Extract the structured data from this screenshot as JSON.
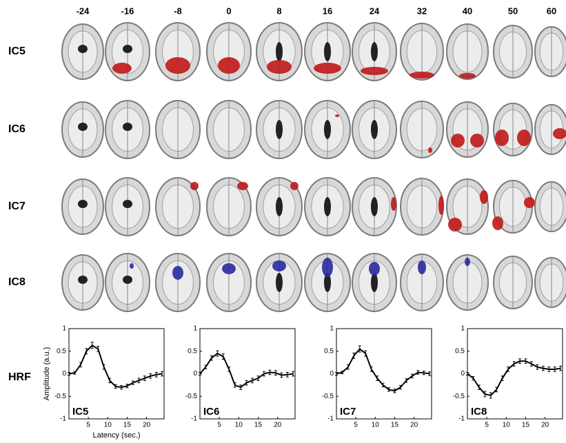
{
  "column_labels": [
    "-24",
    "-16",
    "-8",
    "0",
    "8",
    "16",
    "24",
    "32",
    "40",
    "50",
    "60"
  ],
  "row_labels": [
    "IC5",
    "IC6",
    "IC7",
    "IC8"
  ],
  "hrf_label": "HRF",
  "chart_data": [
    {
      "type": "line",
      "annotation": "IC5",
      "ylabel": "Amplitude (a.u.)",
      "xlabel": "Latency (sec.)",
      "color": "#000000",
      "x": [
        0,
        1.5,
        3,
        4.5,
        6,
        7.5,
        9,
        10.5,
        12,
        13.5,
        15,
        16.5,
        18,
        19.5,
        21,
        22.5,
        24
      ],
      "values": [
        0,
        0.02,
        0.2,
        0.5,
        0.63,
        0.55,
        0.15,
        -0.15,
        -0.28,
        -0.3,
        -0.27,
        -0.2,
        -0.15,
        -0.1,
        -0.05,
        -0.02,
        0
      ],
      "errors": [
        0.03,
        0.03,
        0.05,
        0.06,
        0.07,
        0.06,
        0.05,
        0.05,
        0.04,
        0.04,
        0.04,
        0.04,
        0.05,
        0.05,
        0.05,
        0.05,
        0.05
      ],
      "xlim": [
        0,
        24.5
      ],
      "xticks": [
        5,
        10,
        15,
        20
      ],
      "ylim": [
        -1,
        1
      ],
      "yticks": [
        -1,
        -0.5,
        0,
        0.5,
        1
      ]
    },
    {
      "type": "line",
      "annotation": "IC6",
      "color": "#000000",
      "x": [
        0,
        1.5,
        3,
        4.5,
        6,
        7.5,
        9,
        10.5,
        12,
        13.5,
        15,
        16.5,
        18,
        19.5,
        21,
        22.5,
        24
      ],
      "values": [
        0,
        0.15,
        0.35,
        0.45,
        0.38,
        0.1,
        -0.25,
        -0.3,
        -0.2,
        -0.15,
        -0.1,
        0,
        0.03,
        0.02,
        -0.03,
        -0.02,
        0
      ],
      "errors": [
        0.03,
        0.04,
        0.05,
        0.06,
        0.06,
        0.05,
        0.05,
        0.05,
        0.05,
        0.05,
        0.05,
        0.05,
        0.05,
        0.05,
        0.05,
        0.05,
        0.05
      ],
      "xlim": [
        0,
        24.5
      ],
      "xticks": [
        5,
        10,
        15,
        20
      ],
      "ylim": [
        -1,
        1
      ],
      "yticks": [
        -1,
        -0.5,
        0,
        0.5,
        1
      ]
    },
    {
      "type": "line",
      "annotation": "IC7",
      "color": "#000000",
      "x": [
        0,
        1.5,
        3,
        4.5,
        6,
        7.5,
        9,
        10.5,
        12,
        13.5,
        15,
        16.5,
        18,
        19.5,
        21,
        22.5,
        24
      ],
      "values": [
        0,
        0.03,
        0.15,
        0.4,
        0.55,
        0.45,
        0.1,
        -0.1,
        -0.25,
        -0.35,
        -0.38,
        -0.3,
        -0.15,
        -0.05,
        0.03,
        0.02,
        0
      ],
      "errors": [
        0.03,
        0.03,
        0.05,
        0.06,
        0.07,
        0.06,
        0.05,
        0.05,
        0.04,
        0.04,
        0.04,
        0.04,
        0.04,
        0.04,
        0.04,
        0.04,
        0.04
      ],
      "xlim": [
        0,
        24.5
      ],
      "xticks": [
        5,
        10,
        15,
        20
      ],
      "ylim": [
        -1,
        1
      ],
      "yticks": [
        -1,
        -0.5,
        0,
        0.5,
        1
      ]
    },
    {
      "type": "line",
      "annotation": "IC8",
      "color": "#000000",
      "x": [
        0,
        1.5,
        3,
        4.5,
        6,
        7.5,
        9,
        10.5,
        12,
        13.5,
        15,
        16.5,
        18,
        19.5,
        21,
        22.5,
        24
      ],
      "values": [
        0,
        -0.1,
        -0.3,
        -0.45,
        -0.48,
        -0.35,
        -0.1,
        0.1,
        0.22,
        0.28,
        0.28,
        0.22,
        0.15,
        0.12,
        0.1,
        0.1,
        0.12
      ],
      "errors": [
        0.03,
        0.04,
        0.05,
        0.06,
        0.06,
        0.05,
        0.05,
        0.05,
        0.05,
        0.05,
        0.05,
        0.05,
        0.05,
        0.05,
        0.05,
        0.05,
        0.05
      ],
      "xlim": [
        0,
        24.5
      ],
      "xticks": [
        5,
        10,
        15,
        20
      ],
      "ylim": [
        -1,
        1
      ],
      "yticks": [
        -1,
        -0.5,
        0,
        0.5,
        1
      ]
    }
  ]
}
